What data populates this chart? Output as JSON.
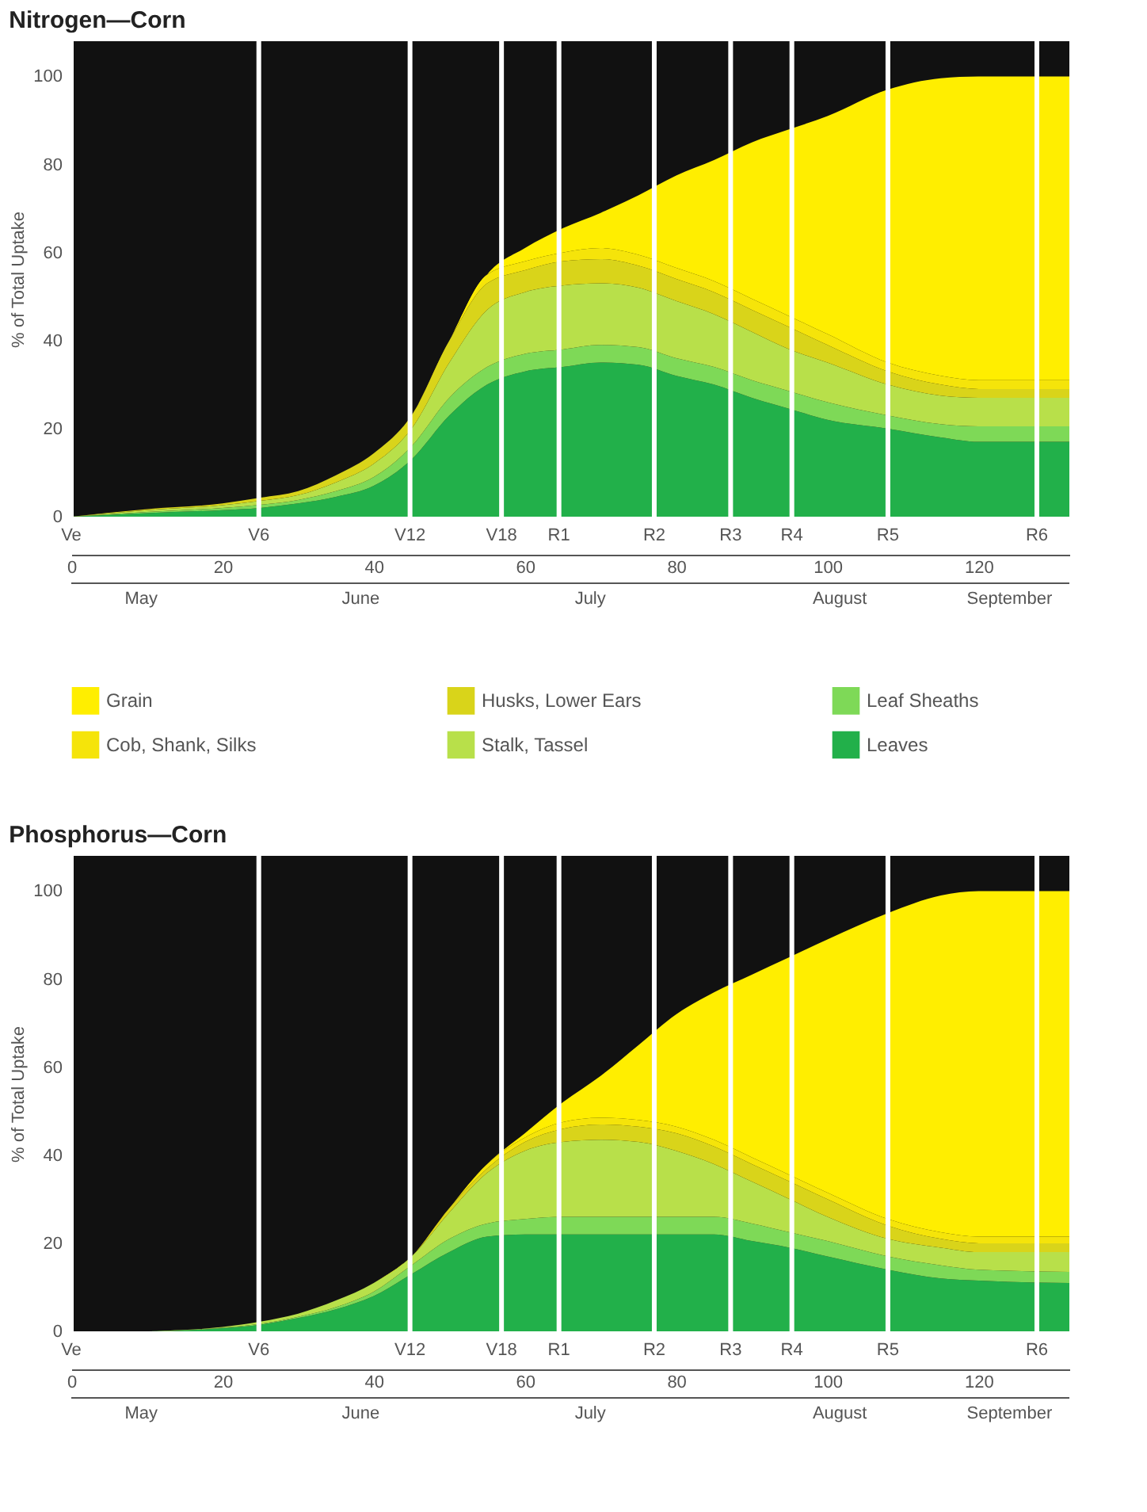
{
  "chart_data": [
    {
      "type": "area",
      "title": "Nitrogen—Corn",
      "ylabel": "% of Total Uptake",
      "stacked": true,
      "legend": "bottom",
      "grid": false,
      "x": [
        0,
        10,
        20,
        25,
        30,
        35,
        40,
        45,
        50,
        55,
        60,
        65,
        70,
        75,
        80,
        85,
        90,
        95,
        100,
        108,
        115,
        120,
        132
      ],
      "xlim": [
        0,
        132
      ],
      "xticks": [
        0,
        20,
        40,
        60,
        80,
        100,
        120
      ],
      "ylim": [
        0,
        108
      ],
      "yticks": [
        0,
        20,
        40,
        60,
        80,
        100
      ],
      "series": [
        {
          "name": "Leaves",
          "color": "#22b04a",
          "values": [
            0,
            0.8,
            1.5,
            2,
            3,
            4.5,
            7,
            13,
            23,
            30,
            33,
            34,
            35,
            34.5,
            32,
            30,
            27,
            24.5,
            22,
            20,
            18,
            17,
            17
          ]
        },
        {
          "name": "Leaf Sheaths",
          "color": "#7ed957",
          "values": [
            0,
            0.3,
            0.5,
            0.7,
            0.8,
            1.3,
            2,
            3,
            4,
            4,
            4,
            4,
            4,
            4,
            4,
            4,
            4,
            4,
            4,
            3,
            3,
            3.5,
            3.5
          ]
        },
        {
          "name": "Stalk, Tassel",
          "color": "#b8e04a",
          "values": [
            0,
            0.4,
            0.6,
            0.9,
            1.1,
            2,
            3,
            4,
            8,
            13,
            14,
            14.5,
            14,
            13.5,
            13,
            12,
            11,
            9.5,
            9,
            7,
            6.5,
            6.5,
            6.5
          ]
        },
        {
          "name": "Husks, Lower Ears",
          "color": "#d9d41a",
          "values": [
            0,
            0.2,
            0.4,
            0.7,
            0.9,
            1.6,
            2.4,
            3,
            5,
            6,
            5,
            5.5,
            5.5,
            5,
            5,
            5,
            5,
            5,
            4,
            3,
            2.5,
            2,
            2
          ]
        },
        {
          "name": "Cob, Shank, Silks",
          "color": "#f5e40a",
          "values": [
            0,
            0,
            0,
            0,
            0,
            0,
            0,
            0,
            0,
            2,
            2,
            2,
            2.5,
            2.5,
            2.5,
            2.5,
            2.5,
            2.5,
            2.5,
            2,
            2,
            2,
            2
          ]
        },
        {
          "name": "Grain",
          "color": "#ffee00",
          "values": [
            0,
            0,
            0,
            0,
            0,
            0,
            0,
            0,
            0,
            0,
            3,
            5.5,
            8,
            13.5,
            21,
            27.5,
            35.5,
            42.5,
            49.5,
            62,
            67.6,
            69,
            69
          ]
        }
      ],
      "ref_lines": [
        {
          "axis": "x",
          "value": 0,
          "label": "Ve",
          "color": "#ffffff"
        },
        {
          "axis": "x",
          "value": 24.8,
          "label": "V6",
          "color": "#ffffff"
        },
        {
          "axis": "x",
          "value": 44.8,
          "label": "V12",
          "color": "#ffffff"
        },
        {
          "axis": "x",
          "value": 56.9,
          "label": "V18",
          "color": "#ffffff"
        },
        {
          "axis": "x",
          "value": 64.5,
          "label": "R1",
          "color": "#ffffff"
        },
        {
          "axis": "x",
          "value": 77.1,
          "label": "R2",
          "color": "#ffffff"
        },
        {
          "axis": "x",
          "value": 87.2,
          "label": "R3",
          "color": "#ffffff"
        },
        {
          "axis": "x",
          "value": 95.3,
          "label": "R4",
          "color": "#ffffff"
        },
        {
          "axis": "x",
          "value": 108,
          "label": "R5",
          "color": "#ffffff"
        },
        {
          "axis": "x",
          "value": 127.7,
          "label": "R6",
          "color": "#ffffff"
        }
      ],
      "annotations": [
        "May",
        "June",
        "July",
        "August",
        "September"
      ]
    },
    {
      "type": "area",
      "title": "Phosphorus—Corn",
      "ylabel": "% of Total Uptake",
      "stacked": true,
      "grid": false,
      "x": [
        0,
        10,
        15,
        20,
        25,
        30,
        35,
        40,
        45,
        50,
        55,
        60,
        65,
        70,
        75,
        80,
        85,
        90,
        95,
        100,
        108,
        115,
        120,
        132
      ],
      "xlim": [
        0,
        132
      ],
      "xticks": [
        0,
        20,
        40,
        60,
        80,
        100,
        120
      ],
      "ylim": [
        0,
        108
      ],
      "yticks": [
        0,
        20,
        40,
        60,
        80,
        100
      ],
      "series": [
        {
          "color": "#22b04a",
          "values": [
            0,
            0,
            0.2,
            0.7,
            1.5,
            3,
            5,
            8,
            13,
            18,
            21.5,
            22,
            22,
            22,
            22,
            22,
            22,
            20.5,
            19,
            17,
            14,
            12,
            11.5,
            11
          ]
        },
        {
          "color": "#7ed957",
          "values": [
            0,
            0,
            0.1,
            0.1,
            0.2,
            0.3,
            0.5,
            1,
            2,
            3,
            3,
            3.5,
            4,
            4,
            4,
            4,
            4,
            4,
            3.5,
            3.5,
            3,
            3,
            2.5,
            2.5
          ]
        },
        {
          "color": "#b8e04a",
          "values": [
            0,
            0,
            0,
            0.2,
            0.5,
            0.7,
            1.5,
            2,
            2,
            6,
            11.5,
            15.5,
            17,
            17.5,
            17,
            15,
            12,
            9.5,
            7.5,
            5.5,
            4,
            4,
            4,
            4.5
          ]
        },
        {
          "color": "#d9d41a",
          "values": [
            0,
            0,
            0,
            0,
            0,
            0,
            0,
            0,
            0,
            1,
            1,
            2,
            3,
            3.5,
            3.5,
            4,
            4,
            4,
            4,
            4,
            3,
            2,
            2,
            2
          ]
        },
        {
          "color": "#f5e40a",
          "values": [
            0,
            0,
            0,
            0,
            0,
            0,
            0,
            0,
            0,
            0,
            1,
            1,
            1.5,
            1.5,
            1.5,
            1.5,
            1.5,
            1.5,
            1.5,
            1.5,
            1.5,
            1.5,
            1.5,
            1.5
          ]
        },
        {
          "color": "#ffee00",
          "values": [
            0,
            0,
            0,
            0,
            0,
            0,
            0,
            0,
            0,
            0,
            0,
            1,
            4.5,
            9.5,
            17,
            25.5,
            33.5,
            41.5,
            49.5,
            57.5,
            69.5,
            76.5,
            78.5,
            78.5
          ]
        }
      ],
      "ref_lines": [
        {
          "axis": "x",
          "value": 0,
          "label": "Ve",
          "color": "#ffffff"
        },
        {
          "axis": "x",
          "value": 24.8,
          "label": "V6",
          "color": "#ffffff"
        },
        {
          "axis": "x",
          "value": 44.8,
          "label": "V12",
          "color": "#ffffff"
        },
        {
          "axis": "x",
          "value": 56.9,
          "label": "V18",
          "color": "#ffffff"
        },
        {
          "axis": "x",
          "value": 64.5,
          "label": "R1",
          "color": "#ffffff"
        },
        {
          "axis": "x",
          "value": 77.1,
          "label": "R2",
          "color": "#ffffff"
        },
        {
          "axis": "x",
          "value": 87.2,
          "label": "R3",
          "color": "#ffffff"
        },
        {
          "axis": "x",
          "value": 95.3,
          "label": "R4",
          "color": "#ffffff"
        },
        {
          "axis": "x",
          "value": 108,
          "label": "R5",
          "color": "#ffffff"
        },
        {
          "axis": "x",
          "value": 127.7,
          "label": "R6",
          "color": "#ffffff"
        }
      ],
      "annotations": [
        "May",
        "June",
        "July",
        "August",
        "September"
      ]
    }
  ]
}
